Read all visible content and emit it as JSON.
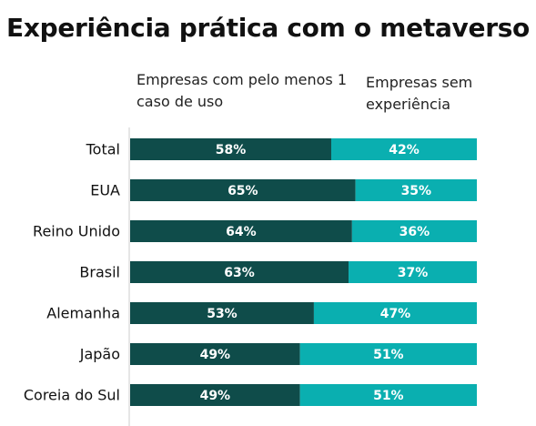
{
  "chart_data": {
    "type": "bar",
    "stacked": true,
    "orientation": "horizontal",
    "title": "Experiência prática com o metaverso",
    "categories": [
      "Total",
      "EUA",
      "Reino Unido",
      "Brasil",
      "Alemanha",
      "Japão",
      "Coreia do Sul"
    ],
    "series": [
      {
        "name": "Empresas com pelo menos 1 caso de uso",
        "values": [
          58,
          65,
          64,
          63,
          53,
          49,
          49
        ],
        "labels": [
          "58%",
          "65%",
          "64%",
          "63%",
          "53%",
          "49%",
          "49%"
        ],
        "color": "#0f4c4a"
      },
      {
        "name": "Empresas sem experiência",
        "values": [
          42,
          35,
          36,
          37,
          47,
          51,
          51
        ],
        "labels": [
          "42%",
          "35%",
          "36%",
          "37%",
          "47%",
          "51%",
          "51%"
        ],
        "color": "#0aafb0"
      }
    ],
    "xlim": [
      0,
      100
    ],
    "grid": false
  }
}
